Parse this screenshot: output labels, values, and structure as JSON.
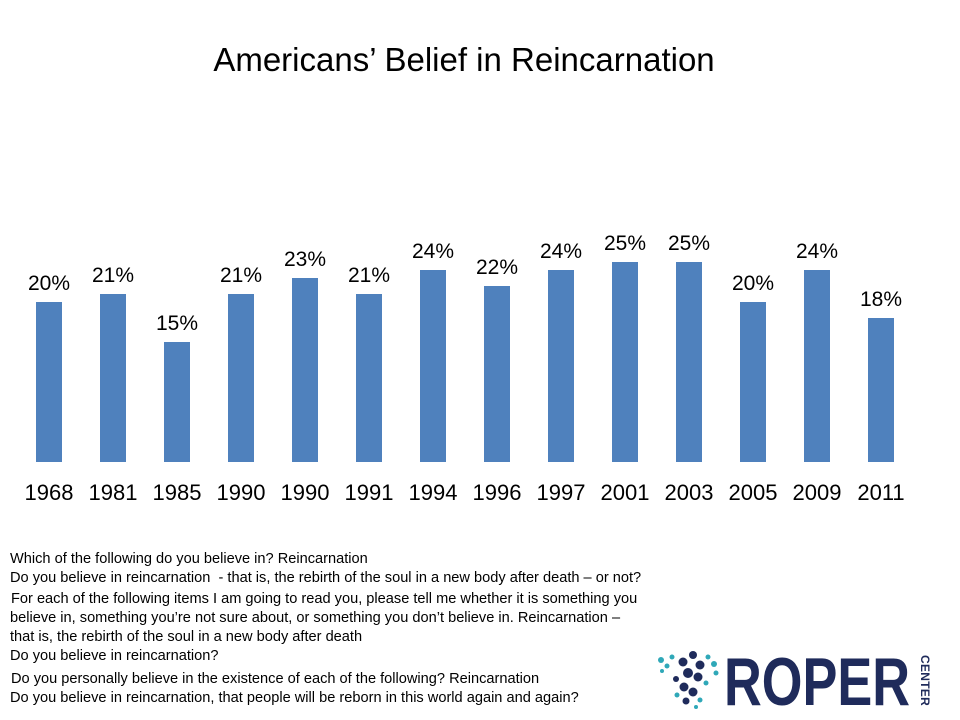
{
  "chart_data": {
    "type": "bar",
    "title": "Americans’ Belief in Reincarnation",
    "categories": [
      "1968",
      "1981",
      "1985",
      "1990",
      "1990",
      "1991",
      "1994",
      "1996",
      "1997",
      "2001",
      "2003",
      "2005",
      "2009",
      "2011"
    ],
    "values": [
      20,
      21,
      15,
      21,
      23,
      21,
      24,
      22,
      24,
      25,
      25,
      20,
      24,
      18
    ],
    "data_labels": [
      "20%",
      "21%",
      "15%",
      "21%",
      "23%",
      "21%",
      "24%",
      "22%",
      "24%",
      "25%",
      "25%",
      "20%",
      "24%",
      "18%"
    ],
    "xlabel": "",
    "ylabel": "",
    "y_axis_visible": false,
    "grid": false,
    "bar_color": "#4F81BD"
  },
  "footnotes": [
    "Which of the following do you believe in? Reincarnation",
    "Do you believe in reincarnation  - that is, the rebirth of the soul in a new body after death – or not?",
    "For each of the following items I am going to read you, please tell me whether it is something you",
    "believe in, something you’re not sure about, or something you don’t believe in. Reincarnation –",
    "that is, the rebirth of the soul in a new body after death",
    "Do you believe in reincarnation?",
    "Do you personally believe in the existence of each of the following? Reincarnation",
    "Do you believe in reincarnation, that people will be reborn in this world again and again?"
  ],
  "logo": {
    "wordmark": "ROPER",
    "vertical_text": "CENTER",
    "icon": "dot-cluster-icon",
    "colors": {
      "navy": "#1F2B5B",
      "teal": "#2FA8B8"
    }
  }
}
